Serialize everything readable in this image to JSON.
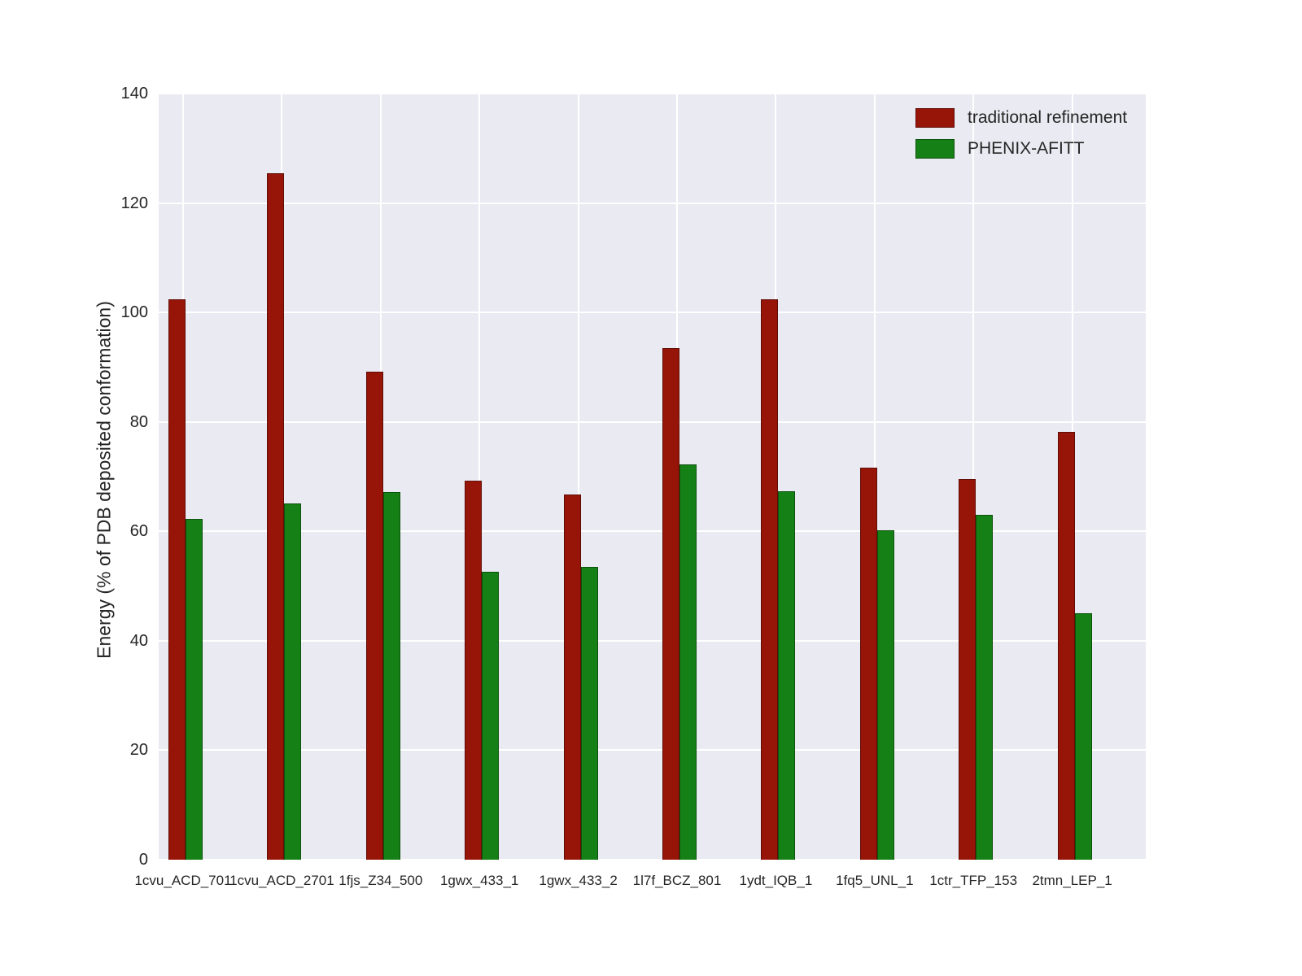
{
  "figure": {
    "background": "#ffffff",
    "plot_background": "#eaeaf2",
    "grid_color": "#ffffff",
    "text_color": "#262626"
  },
  "legend": {
    "entries": [
      {
        "label": "traditional refinement",
        "color": "#961408"
      },
      {
        "label": "PHENIX-AFITT",
        "color": "#158015"
      }
    ]
  },
  "chart_data": {
    "type": "bar",
    "title": "",
    "xlabel": "",
    "ylabel": "Energy (% of PDB deposited conformation)",
    "ylim": [
      0,
      140
    ],
    "yticks": [
      0,
      20,
      40,
      60,
      80,
      100,
      120,
      140
    ],
    "grid": true,
    "legend_position": "upper right",
    "categories": [
      "1cvu_ACD_701",
      "1cvu_ACD_2701",
      "1fjs_Z34_500",
      "1gwx_433_1",
      "1gwx_433_2",
      "1l7f_BCZ_801",
      "1ydt_IQB_1",
      "1fq5_UNL_1",
      "1ctr_TFP_153",
      "2tmn_LEP_1"
    ],
    "series": [
      {
        "name": "traditional refinement",
        "color": "#961408",
        "values": [
          102.4,
          125.4,
          89.2,
          69.3,
          66.7,
          93.5,
          102.4,
          71.6,
          69.6,
          78.2
        ]
      },
      {
        "name": "PHENIX-AFITT",
        "color": "#158015",
        "values": [
          62.3,
          65.1,
          67.2,
          52.6,
          53.5,
          72.3,
          67.3,
          60.2,
          63.0,
          45.0
        ]
      }
    ]
  }
}
